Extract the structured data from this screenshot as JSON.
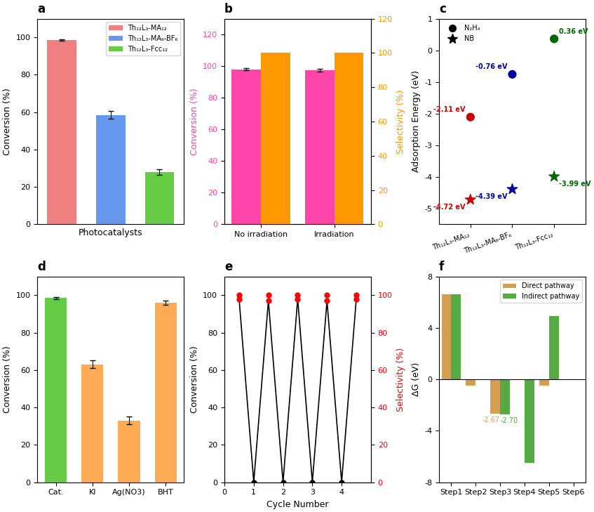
{
  "chart_data": [
    {
      "type": "bar",
      "title": "a",
      "categories": [
        "Th₁₂L₃-MA₁₂",
        "Th₁₂L₃-MA₆-BF₆",
        "Th₁₂L₃-Fcc₁₂"
      ],
      "values": [
        98.5,
        58.5,
        28.0
      ],
      "errors": [
        0.5,
        2.0,
        1.5
      ],
      "colors": [
        "#f08080",
        "#6699ee",
        "#66cc44"
      ],
      "xlabel": "Photocatalysts",
      "ylabel": "Conversion (%)",
      "ylim": [
        0,
        110
      ],
      "yticks": [
        0,
        20,
        40,
        60,
        80,
        100
      ],
      "tick_labels": "y",
      "legend": "upper right"
    },
    {
      "type": "bar",
      "title": "b",
      "categories": [
        "No irradiation",
        "Irradiation"
      ],
      "ylabel": "Conversion (%)",
      "y2label": "Selectivity (%)",
      "ylim": [
        0,
        130
      ],
      "yticks": [
        0,
        20,
        40,
        60,
        80,
        100,
        120
      ],
      "y2lim": [
        0,
        120
      ],
      "y2ticks": [
        0,
        20,
        40,
        60,
        80,
        100,
        120
      ],
      "series": [
        {
          "color": "#ff44aa",
          "values": [
            98.0,
            97.5
          ],
          "errors": [
            0.8,
            0.8
          ]
        },
        {
          "color": "#ff9900",
          "values": [
            100.0,
            100.0
          ],
          "axis": "y2"
        }
      ]
    },
    {
      "type": "scatter",
      "title": "c",
      "categories": [
        "Th₁₂L₃-MA₁₂",
        "Th₁₂L₃-MA₆-BF₆",
        "Th₁₂L₃-Fcc₁₂"
      ],
      "ylabel": "Adsorption Energy (eV)",
      "ylim": [
        -5.5,
        1.0
      ],
      "yticks": [
        -5,
        -4,
        -3,
        -2,
        -1,
        0,
        1
      ],
      "data_labels": true,
      "legend": "upper left",
      "series": [
        {
          "name": "N₂H₄",
          "marker": "o",
          "colors": [
            "#cc0000",
            "#000099",
            "#006600"
          ],
          "values": [
            -2.11,
            -0.76,
            0.36
          ],
          "value_labels": [
            "-2.11 eV",
            "-0.76 eV",
            "0.36 eV"
          ]
        },
        {
          "name": "NB",
          "marker": "*",
          "colors": [
            "#cc0000",
            "#000099",
            "#006600"
          ],
          "values": [
            -4.72,
            -4.39,
            -3.99
          ],
          "value_labels": [
            "-4.72 eV",
            "-4.39 eV",
            "-3.99 eV"
          ]
        }
      ]
    },
    {
      "type": "bar",
      "title": "d",
      "categories": [
        "Cat.",
        "KI",
        "Ag(NO3)",
        "BHT"
      ],
      "values": [
        98.5,
        63.0,
        33.0,
        96.0
      ],
      "errors": [
        0.5,
        2.0,
        2.0,
        1.0
      ],
      "colors": [
        "#66cc44",
        "#ffaa55",
        "#ffaa55",
        "#ffaa55"
      ],
      "ylabel": "Conversion (%)",
      "ylim": [
        0,
        110
      ],
      "yticks": [
        0,
        20,
        40,
        60,
        80,
        100
      ]
    },
    {
      "type": "line",
      "title": "e",
      "xlabel": "Cycle Number",
      "ylabel": "Conversion (%)",
      "y2label": "Selectivity (%)",
      "xlim": [
        0,
        5
      ],
      "xticks": [
        0,
        1,
        2,
        3,
        4
      ],
      "ylim": [
        0,
        110
      ],
      "yticks": [
        0,
        20,
        40,
        60,
        80,
        100
      ],
      "y2lim": [
        0,
        110
      ],
      "y2ticks": [
        0,
        20,
        40,
        60,
        80,
        100
      ],
      "series": [
        {
          "type": "line",
          "color": "black",
          "x": [
            0.5,
            1.0,
            1.5,
            2.0,
            2.5,
            3.0,
            3.5,
            4.0,
            4.5
          ],
          "values": [
            98,
            0,
            97,
            0,
            98,
            0,
            97,
            0,
            98
          ]
        },
        {
          "type": "scatter",
          "color": "red",
          "marker": "o",
          "x": [
            0.5,
            1.5,
            2.5,
            3.5,
            4.5
          ],
          "values": [
            98,
            97,
            98,
            97,
            98
          ]
        },
        {
          "type": "scatter",
          "color": "black",
          "marker": "o",
          "x": [
            1.0,
            2.0,
            3.0,
            4.0
          ],
          "values": [
            0,
            0,
            0,
            0
          ]
        },
        {
          "type": "scatter",
          "color": "red",
          "marker": "o",
          "axis": "y2",
          "x": [
            0.5,
            1.5,
            2.5,
            3.5,
            4.5
          ],
          "values": [
            100,
            100,
            100,
            100,
            100
          ]
        }
      ]
    },
    {
      "type": "bar",
      "title": "f",
      "categories": [
        "Step1",
        "Step2",
        "Step3",
        "Step4",
        "Step5",
        "Step6"
      ],
      "ylabel": "ΔG (eV)",
      "ylim": [
        -8,
        8
      ],
      "yticks": [
        -8,
        -4,
        0,
        4,
        8
      ],
      "legend": "upper right",
      "series": [
        {
          "name": "Direct pathway",
          "color": "#d4a050",
          "values": [
            6.6,
            -0.5,
            -2.67,
            0.0,
            -0.5,
            0.0
          ]
        },
        {
          "name": "Indirect pathway",
          "color": "#55aa44",
          "values": [
            6.6,
            0.0,
            -2.7,
            -6.5,
            4.9,
            0.0
          ]
        }
      ],
      "annotations": [
        {
          "text": "-2.67",
          "category": "Step3",
          "series": "Direct pathway"
        },
        {
          "text": "-2.70",
          "category": "Step3",
          "series": "Indirect pathway"
        }
      ]
    }
  ]
}
